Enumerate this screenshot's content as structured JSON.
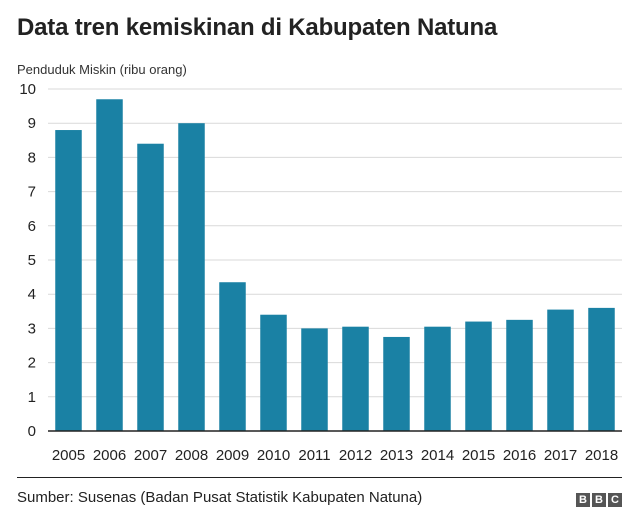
{
  "header": {
    "title": "Data tren kemiskinan di Kabupaten Natuna"
  },
  "footer": {
    "source": "Sumber: Susenas (Badan Pusat Statistik Kabupaten Natuna)",
    "logo_letters": [
      "B",
      "B",
      "C"
    ]
  },
  "colors": {
    "bar": "#1a81a4",
    "grid": "#d9d9d9",
    "axis": "#222222"
  },
  "chart_data": {
    "type": "bar",
    "title": "Data tren kemiskinan di Kabupaten Natuna",
    "ylabel": "Penduduk Miskin (ribu orang)",
    "xlabel": "",
    "categories": [
      "2005",
      "2006",
      "2007",
      "2008",
      "2009",
      "2010",
      "2011",
      "2012",
      "2013",
      "2014",
      "2015",
      "2016",
      "2017",
      "2018"
    ],
    "values": [
      8.8,
      9.7,
      8.4,
      9.0,
      4.35,
      3.4,
      3.0,
      3.05,
      2.75,
      3.05,
      3.2,
      3.25,
      3.55,
      3.6
    ],
    "ylim": [
      0,
      10
    ],
    "yticks": [
      0,
      1,
      2,
      3,
      4,
      5,
      6,
      7,
      8,
      9,
      10
    ],
    "grid": true,
    "legend": "none"
  }
}
